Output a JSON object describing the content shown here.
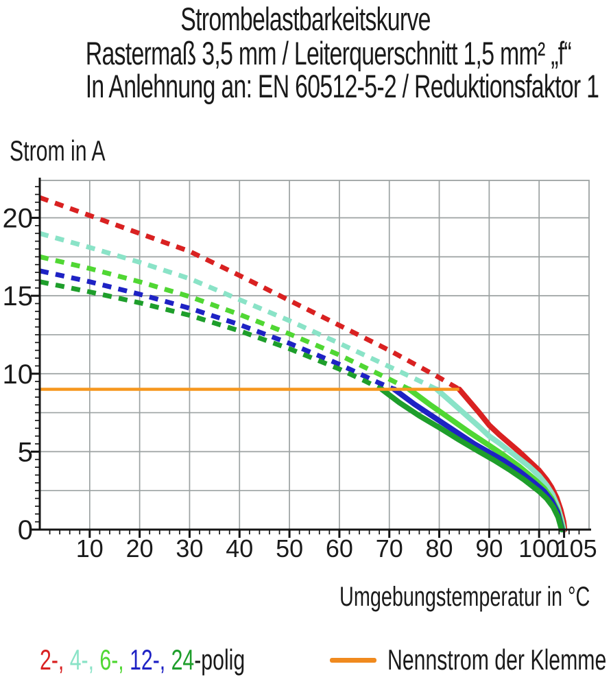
{
  "header": {
    "title_line1": "Strombelastbarkeitskurve",
    "title_line2": "Rastermaß 3,5 mm / Leiterquerschnitt 1,5 mm² „f“",
    "title_line3": "In Anlehnung an: EN 60512-5-2 / Reduktionsfaktor 1"
  },
  "chart_data": {
    "type": "line",
    "ylabel": "Strom in A",
    "xlabel": "Umgebungstemperatur in °C",
    "xlim": [
      0,
      110
    ],
    "ylim": [
      0,
      22.4
    ],
    "x_tick_labels": [
      10,
      20,
      30,
      40,
      50,
      60,
      70,
      80,
      90,
      100,
      105
    ],
    "y_tick_labels": [
      0,
      5,
      10,
      15,
      20
    ],
    "x_gridline_step": 10,
    "y_gridline_step": 2.5,
    "x_minor_tick_step": 2,
    "y_minor_tick_step": 0.5,
    "grid_on": true,
    "grid_color": "#9CA2A2",
    "axis_color": "#141414",
    "nominal_current": {
      "label": "Nennstrom der Klemme",
      "value_a": 9,
      "x_start": 0,
      "x_end": 84,
      "color": "#F6971E"
    },
    "series": [
      {
        "name": "2-polig",
        "color": "#D92121",
        "dashed": [
          [
            0,
            21.3
          ],
          [
            10,
            20.15
          ],
          [
            20,
            19.0
          ],
          [
            30,
            17.85
          ],
          [
            40,
            16.3
          ],
          [
            50,
            14.7
          ],
          [
            60,
            13.1
          ],
          [
            70,
            11.5
          ],
          [
            80,
            9.75
          ],
          [
            84,
            9.0
          ]
        ],
        "solid": [
          [
            84,
            9.0
          ],
          [
            86,
            8.25
          ],
          [
            88,
            7.5
          ],
          [
            90,
            6.7
          ],
          [
            92,
            6.1
          ],
          [
            94,
            5.55
          ],
          [
            96,
            5.0
          ],
          [
            98,
            4.4
          ],
          [
            100,
            3.8
          ],
          [
            101.5,
            3.2
          ],
          [
            102.5,
            2.7
          ],
          [
            103.5,
            2.05
          ],
          [
            104.3,
            1.3
          ],
          [
            104.9,
            0.5
          ],
          [
            105.1,
            0
          ]
        ]
      },
      {
        "name": "4-polig",
        "color": "#8AE3C7",
        "dashed": [
          [
            0,
            19.0
          ],
          [
            10,
            18.1
          ],
          [
            20,
            17.15
          ],
          [
            30,
            16.1
          ],
          [
            40,
            14.75
          ],
          [
            50,
            13.4
          ],
          [
            60,
            11.95
          ],
          [
            70,
            10.45
          ],
          [
            75,
            9.7
          ],
          [
            79.5,
            9.0
          ]
        ],
        "solid": [
          [
            79.5,
            9.0
          ],
          [
            82,
            8.3
          ],
          [
            85,
            7.45
          ],
          [
            88,
            6.6
          ],
          [
            90,
            6.0
          ],
          [
            92,
            5.55
          ],
          [
            95,
            4.8
          ],
          [
            98,
            4.05
          ],
          [
            100,
            3.45
          ],
          [
            101.5,
            2.85
          ],
          [
            102.7,
            2.25
          ],
          [
            103.7,
            1.5
          ],
          [
            104.5,
            0.6
          ],
          [
            104.9,
            0
          ]
        ]
      },
      {
        "name": "6-polig",
        "color": "#50D733",
        "dashed": [
          [
            0,
            17.5
          ],
          [
            10,
            16.75
          ],
          [
            20,
            15.9
          ],
          [
            30,
            14.95
          ],
          [
            40,
            13.8
          ],
          [
            50,
            12.55
          ],
          [
            60,
            11.2
          ],
          [
            70,
            9.65
          ],
          [
            74,
            9.0
          ]
        ],
        "solid": [
          [
            74,
            9.0
          ],
          [
            78,
            8.05
          ],
          [
            82,
            7.15
          ],
          [
            86,
            6.25
          ],
          [
            90,
            5.4
          ],
          [
            93,
            4.75
          ],
          [
            96,
            4.05
          ],
          [
            99,
            3.25
          ],
          [
            101,
            2.65
          ],
          [
            102.5,
            2.0
          ],
          [
            103.7,
            1.2
          ],
          [
            104.7,
            0
          ]
        ]
      },
      {
        "name": "12-polig",
        "color": "#1E22C4",
        "dashed": [
          [
            0,
            16.6
          ],
          [
            10,
            15.9
          ],
          [
            20,
            15.1
          ],
          [
            30,
            14.2
          ],
          [
            40,
            13.15
          ],
          [
            50,
            11.95
          ],
          [
            60,
            10.6
          ],
          [
            68,
            9.4
          ],
          [
            71,
            9.0
          ]
        ],
        "solid": [
          [
            71,
            9.0
          ],
          [
            75,
            8.05
          ],
          [
            79,
            7.2
          ],
          [
            83,
            6.35
          ],
          [
            87,
            5.5
          ],
          [
            90,
            4.95
          ],
          [
            93,
            4.4
          ],
          [
            96,
            3.75
          ],
          [
            99,
            3.0
          ],
          [
            101,
            2.45
          ],
          [
            102.5,
            1.85
          ],
          [
            103.7,
            1.1
          ],
          [
            104.6,
            0
          ]
        ]
      },
      {
        "name": "24-polig",
        "color": "#1E9E2B",
        "dashed": [
          [
            0,
            15.9
          ],
          [
            10,
            15.25
          ],
          [
            20,
            14.55
          ],
          [
            30,
            13.75
          ],
          [
            40,
            12.75
          ],
          [
            50,
            11.6
          ],
          [
            60,
            10.3
          ],
          [
            65,
            9.55
          ],
          [
            68.5,
            9.0
          ]
        ],
        "solid": [
          [
            68.5,
            9.0
          ],
          [
            72,
            8.15
          ],
          [
            76,
            7.3
          ],
          [
            80,
            6.55
          ],
          [
            84,
            5.75
          ],
          [
            88,
            5.0
          ],
          [
            91,
            4.45
          ],
          [
            94,
            3.85
          ],
          [
            97,
            3.2
          ],
          [
            100,
            2.45
          ],
          [
            101.5,
            2.0
          ],
          [
            102.8,
            1.45
          ],
          [
            103.8,
            0.8
          ],
          [
            104.5,
            0
          ]
        ]
      }
    ]
  },
  "legend": {
    "series_items": [
      {
        "text": "2-,",
        "color": "#D92121"
      },
      {
        "text": "4-,",
        "color": "#8AE3C7"
      },
      {
        "text": "6-,",
        "color": "#50D733"
      },
      {
        "text": "12-,",
        "color": "#1E22C4"
      },
      {
        "text": "24",
        "color": "#1E9E2B"
      }
    ],
    "series_suffix": "-polig",
    "nominal_label": "Nennstrom der Klemme",
    "nominal_color": "#F08A1E"
  }
}
